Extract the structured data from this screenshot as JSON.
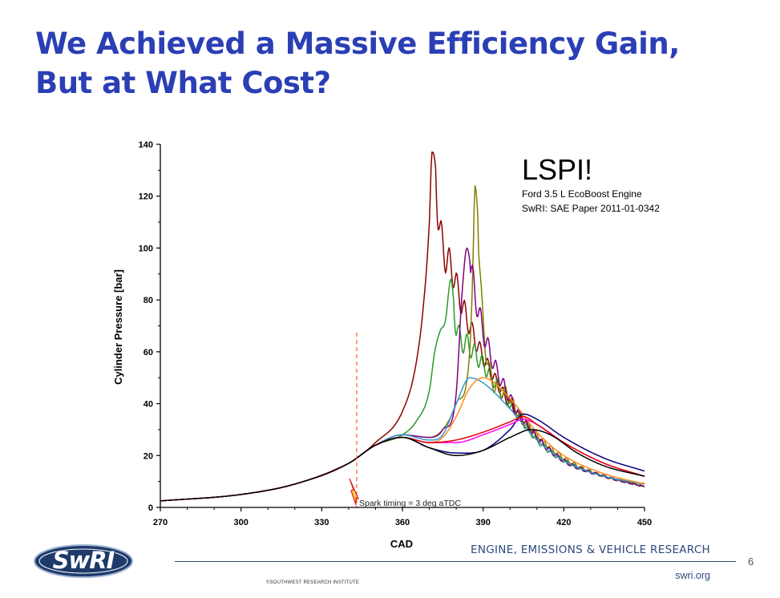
{
  "slide": {
    "title_line1": "We Achieved a Massive Efficiency Gain,",
    "title_line2": "But at What Cost?",
    "page_number": "6"
  },
  "footer": {
    "logo_text": "SwRI",
    "tagline": "ENGINE, EMISSIONS & VEHICLE RESEARCH",
    "copyright": "©SOUTHWEST RESEARCH INSTITUTE",
    "website": "swri.org"
  },
  "chart_data": {
    "type": "line",
    "title": "",
    "xlabel": "CAD",
    "ylabel": "Cylinder Pressure [bar]",
    "xlim": [
      270,
      450
    ],
    "ylim": [
      0,
      140
    ],
    "xticks": [
      270,
      300,
      330,
      360,
      390,
      420,
      450
    ],
    "yticks": [
      0,
      20,
      40,
      60,
      80,
      100,
      120,
      140
    ],
    "grid": false,
    "annotations": {
      "headline": "LSPI!",
      "source_line1": "Ford 3.5 L EcoBoost Engine",
      "source_line2": "SwRI: SAE Paper 2011-01-0342",
      "spark_label": "Spark timing = 3 deg aTDC",
      "spark_cad": 343
    },
    "series": [
      {
        "color": "#8b0000",
        "x": [
          270,
          300,
          320,
          340,
          350,
          360,
          365,
          368,
          370,
          371,
          372,
          373,
          375,
          377,
          379,
          381,
          385,
          390,
          400,
          410,
          420,
          435,
          450
        ],
        "y": [
          2.5,
          5,
          9,
          17,
          25,
          37,
          55,
          80,
          110,
          137,
          134,
          118,
          100,
          95,
          90,
          82,
          70,
          58,
          40,
          27,
          18,
          12,
          8
        ]
      },
      {
        "color": "#2a9a2a",
        "x": [
          270,
          300,
          320,
          340,
          350,
          360,
          365,
          370,
          372,
          374,
          376,
          378,
          380,
          385,
          390,
          400,
          410,
          420,
          435,
          450
        ],
        "y": [
          2.5,
          5,
          9,
          17,
          24,
          28,
          33,
          45,
          60,
          68,
          72,
          88,
          70,
          62,
          55,
          40,
          26,
          18,
          12,
          8
        ]
      },
      {
        "color": "#808000",
        "x": [
          270,
          300,
          320,
          340,
          350,
          360,
          370,
          375,
          380,
          385,
          386,
          387,
          390,
          400,
          410,
          420,
          435,
          450
        ],
        "y": [
          2.5,
          5,
          9,
          17,
          24,
          28,
          27,
          30,
          40,
          60,
          85,
          124,
          70,
          42,
          28,
          19,
          12,
          9
        ]
      },
      {
        "color": "#800080",
        "x": [
          270,
          300,
          320,
          340,
          350,
          360,
          370,
          375,
          380,
          382,
          384,
          386,
          390,
          400,
          410,
          420,
          435,
          450
        ],
        "y": [
          2.5,
          5,
          9,
          17,
          24,
          28,
          27,
          30,
          44,
          80,
          100,
          88,
          68,
          42,
          27,
          18,
          12,
          8
        ]
      },
      {
        "color": "#3399cc",
        "x": [
          270,
          300,
          320,
          340,
          350,
          360,
          370,
          375,
          380,
          385,
          390,
          400,
          410,
          420,
          435,
          450
        ],
        "y": [
          2.5,
          5,
          9,
          17,
          24,
          28,
          26,
          28,
          40,
          50,
          48,
          38,
          26,
          18,
          12,
          9
        ]
      },
      {
        "color": "#ff8c1a",
        "x": [
          270,
          300,
          320,
          340,
          350,
          360,
          370,
          375,
          380,
          385,
          390,
          400,
          410,
          420,
          435,
          450
        ],
        "y": [
          2.5,
          5,
          9,
          17,
          24,
          27,
          25,
          27,
          35,
          46,
          50,
          42,
          29,
          20,
          13,
          9
        ]
      },
      {
        "color": "#000080",
        "x": [
          270,
          300,
          320,
          340,
          350,
          360,
          370,
          380,
          390,
          400,
          405,
          410,
          420,
          435,
          450
        ],
        "y": [
          2.5,
          5,
          9,
          17,
          24,
          27,
          23,
          21,
          22,
          30,
          36,
          34,
          27,
          19,
          14
        ]
      },
      {
        "color": "#ff00ff",
        "x": [
          270,
          300,
          320,
          340,
          350,
          360,
          370,
          380,
          390,
          400,
          405,
          410,
          420,
          435,
          450
        ],
        "y": [
          2.5,
          5,
          9,
          17,
          24,
          27,
          25,
          25,
          28,
          32,
          34,
          32,
          25,
          17,
          12
        ]
      },
      {
        "color": "#e60000",
        "x": [
          270,
          300,
          320,
          340,
          350,
          360,
          370,
          380,
          390,
          400,
          405,
          410,
          420,
          435,
          450
        ],
        "y": [
          2.5,
          5,
          9,
          17,
          24,
          27,
          25,
          26,
          29,
          33,
          35,
          32,
          25,
          17,
          12
        ]
      },
      {
        "color": "#000000",
        "x": [
          270,
          300,
          320,
          340,
          350,
          360,
          370,
          380,
          390,
          400,
          408,
          415,
          425,
          435,
          450
        ],
        "y": [
          2.5,
          5,
          9,
          17,
          24,
          27,
          23,
          20,
          22,
          27,
          30,
          28,
          21,
          16,
          12
        ]
      }
    ]
  }
}
